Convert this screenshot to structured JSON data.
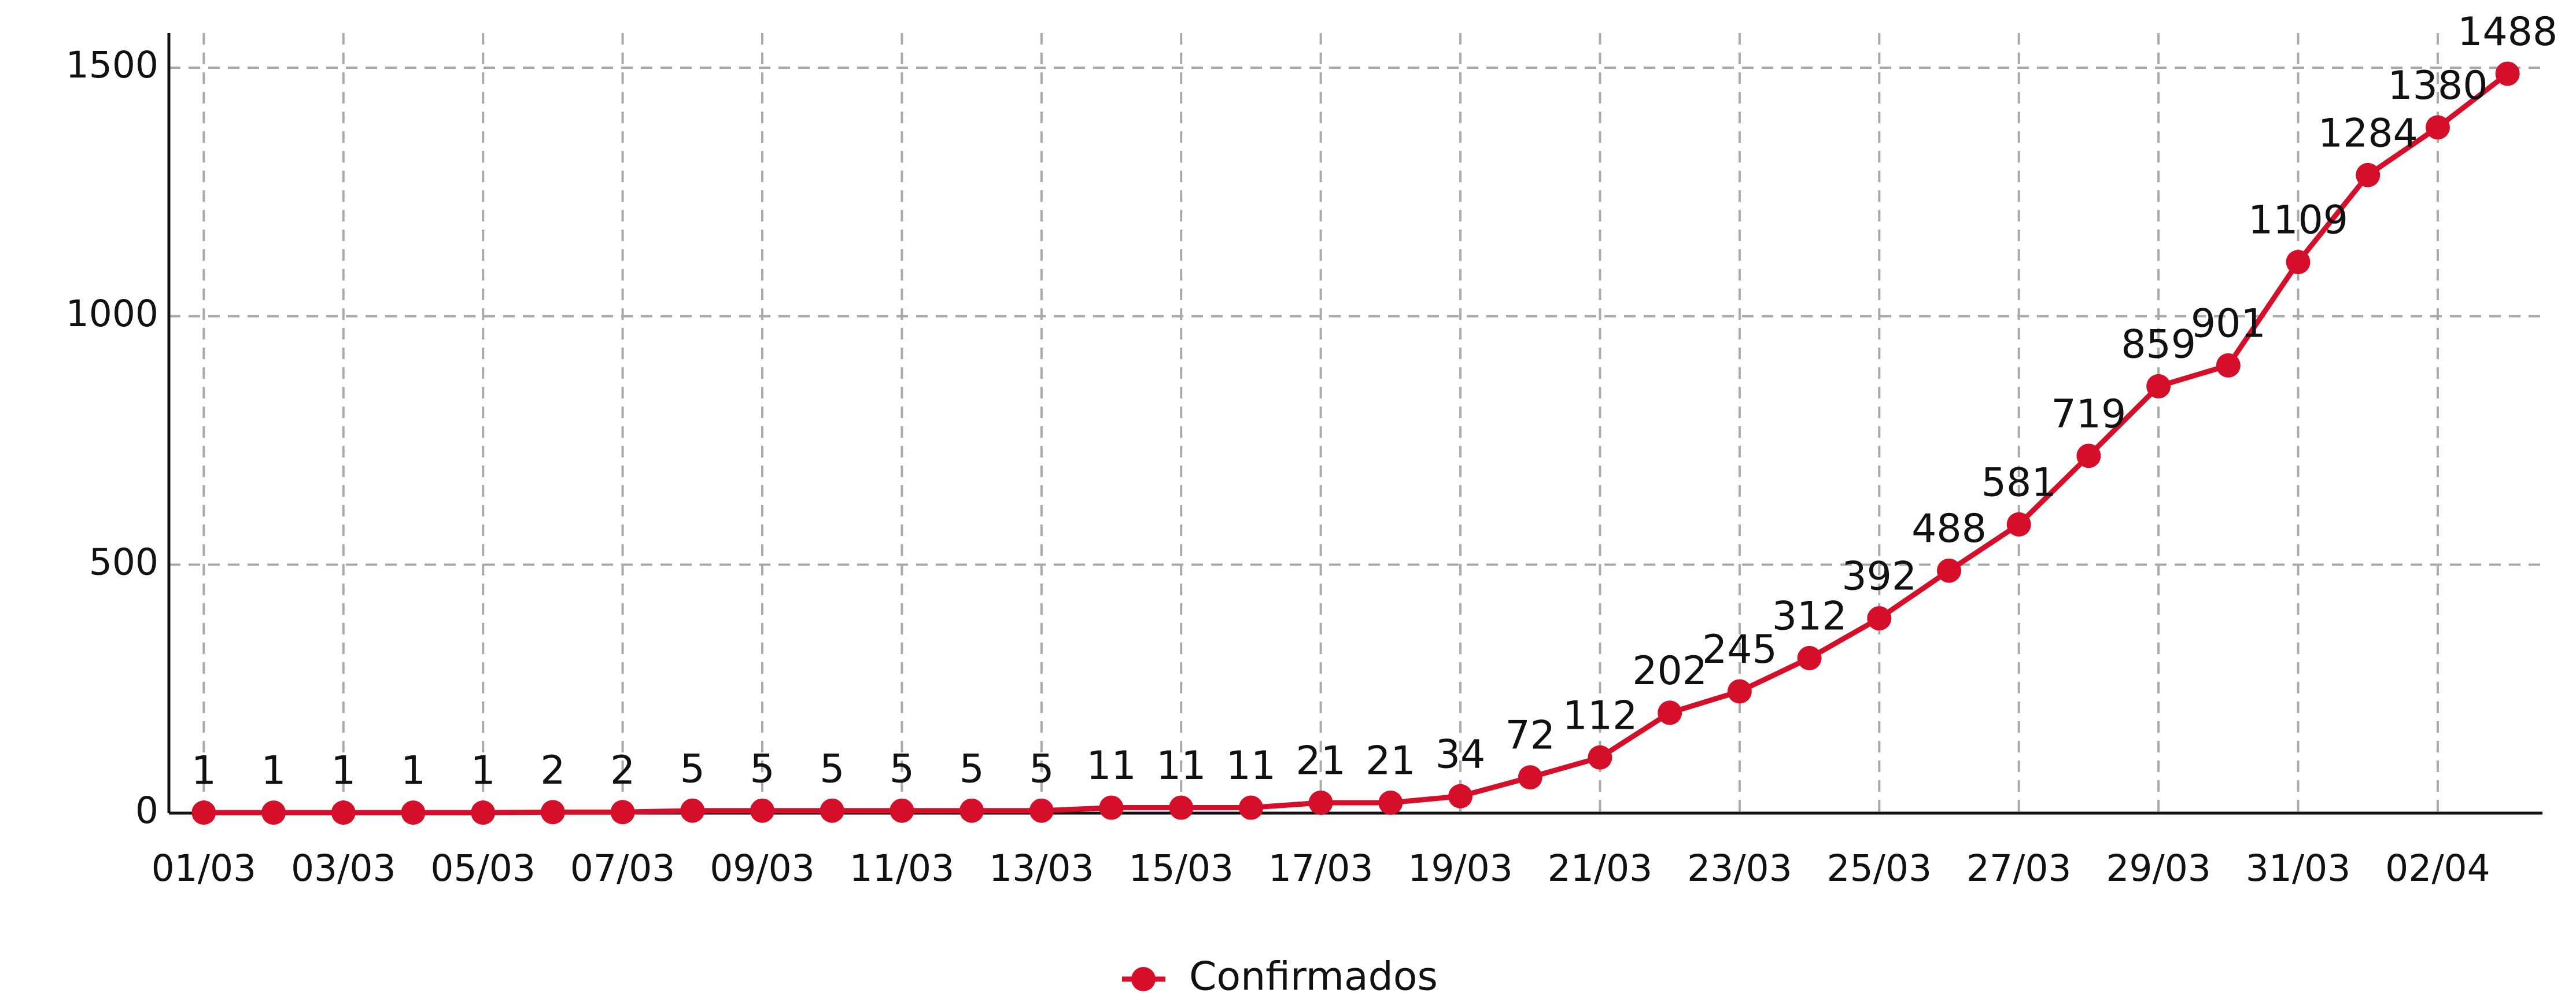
{
  "chart_data": {
    "type": "line",
    "categories": [
      "01/03",
      null,
      "03/03",
      null,
      "05/03",
      null,
      "07/03",
      null,
      "09/03",
      null,
      "11/03",
      null,
      "13/03",
      null,
      "15/03",
      null,
      "17/03",
      null,
      "19/03",
      null,
      "21/03",
      null,
      "23/03",
      null,
      "25/03",
      null,
      "27/03",
      null,
      "29/03",
      null,
      "31/03",
      null,
      "02/04",
      null
    ],
    "series": [
      {
        "name": "Confirmados",
        "color": "#d50f2a",
        "values": [
          1,
          1,
          1,
          1,
          1,
          2,
          2,
          5,
          5,
          5,
          5,
          5,
          5,
          11,
          11,
          11,
          21,
          21,
          34,
          72,
          112,
          202,
          245,
          312,
          392,
          488,
          581,
          719,
          859,
          901,
          1109,
          1284,
          1380,
          1488
        ]
      }
    ],
    "ylim": [
      0,
      1570
    ],
    "yticks": [
      0,
      500,
      1000,
      1500
    ],
    "grid": true,
    "legend": "bottom"
  }
}
